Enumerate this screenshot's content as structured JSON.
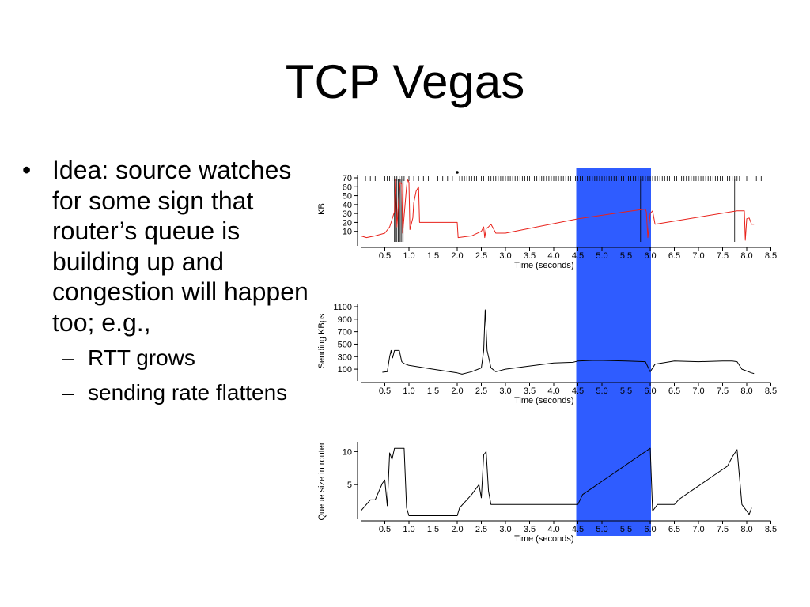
{
  "slide": {
    "title": "TCP Vegas",
    "bullets": [
      {
        "marker": "•",
        "text": "Idea: source watches for some sign that router’s queue is building up and congestion will happen too; e.g.,"
      }
    ],
    "sub_bullets": [
      {
        "marker": "–",
        "text": "RTT grows"
      },
      {
        "marker": "–",
        "text": "sending rate flattens"
      }
    ]
  },
  "colors": {
    "highlight": "#2f5cff",
    "cwnd_line": "#e8221b",
    "trace": "#000000"
  },
  "chart_data": [
    {
      "type": "line",
      "ylabel": "KB",
      "xlabel": "Time (seconds)",
      "xlim": [
        0,
        8.5
      ],
      "ylim": [
        0,
        70
      ],
      "xticks": [
        "0.5",
        "1.0",
        "1.5",
        "2.0",
        "2.5",
        "3.0",
        "3.5",
        "4.0",
        "4.5",
        "5.0",
        "5.5",
        "6.0",
        "6.5",
        "7.0",
        "7.5",
        "8.0",
        "8.5"
      ],
      "yticks": [
        "10",
        "20",
        "30",
        "40",
        "50",
        "60",
        "70"
      ],
      "highlight_range": [
        4.5,
        6.0
      ],
      "series": [
        {
          "color": "#e8221b",
          "points": [
            [
              0,
              5
            ],
            [
              0.12,
              3
            ],
            [
              0.3,
              5
            ],
            [
              0.5,
              8
            ],
            [
              0.6,
              15
            ],
            [
              0.7,
              32
            ],
            [
              0.72,
              68
            ],
            [
              0.75,
              15
            ],
            [
              0.8,
              55
            ],
            [
              0.82,
              65
            ],
            [
              0.85,
              63
            ],
            [
              0.87,
              8
            ],
            [
              0.92,
              40
            ],
            [
              0.95,
              60
            ],
            [
              0.97,
              68
            ],
            [
              1.0,
              65
            ],
            [
              1.02,
              12
            ],
            [
              1.08,
              25
            ],
            [
              1.1,
              42
            ],
            [
              1.15,
              55
            ],
            [
              1.2,
              60
            ],
            [
              1.22,
              20
            ],
            [
              2.0,
              20
            ],
            [
              2.02,
              3
            ],
            [
              2.3,
              5
            ],
            [
              2.5,
              10
            ],
            [
              2.55,
              15
            ],
            [
              2.57,
              3
            ],
            [
              2.6,
              13
            ],
            [
              2.65,
              15
            ],
            [
              2.7,
              18
            ],
            [
              2.75,
              13
            ],
            [
              2.8,
              8
            ],
            [
              3.0,
              8
            ],
            [
              4.5,
              24
            ],
            [
              5.0,
              28
            ],
            [
              5.5,
              32
            ],
            [
              5.9,
              35
            ],
            [
              5.92,
              32
            ],
            [
              5.95,
              3
            ],
            [
              6.0,
              30
            ],
            [
              6.05,
              33
            ],
            [
              6.1,
              18
            ],
            [
              7.8,
              33
            ],
            [
              7.95,
              33
            ],
            [
              7.97,
              0
            ],
            [
              8.0,
              24
            ],
            [
              8.05,
              25
            ],
            [
              8.1,
              18
            ],
            [
              8.15,
              18
            ]
          ]
        }
      ],
      "vertical_marks": [
        0.7,
        0.72,
        0.75,
        0.78,
        0.8,
        0.82,
        0.85,
        0.88,
        2.6,
        5.8,
        7.75
      ],
      "tick_marks": [
        0.1,
        0.2,
        0.3,
        0.4,
        0.5,
        0.55,
        0.6,
        0.65,
        0.7,
        0.75,
        0.8,
        0.85,
        0.9,
        1.0,
        1.1,
        1.2,
        1.3,
        1.4,
        1.5,
        1.6,
        1.7,
        1.8,
        1.9,
        2.05,
        2.1,
        2.15,
        2.2,
        2.25,
        2.3,
        2.35,
        2.4,
        2.45,
        2.5,
        2.55,
        2.6,
        2.65,
        2.7,
        2.75,
        2.8,
        2.85,
        2.9,
        2.95,
        3.0,
        3.05,
        3.1,
        3.15,
        3.2,
        3.25,
        3.3,
        3.35,
        3.4,
        3.45,
        3.5,
        3.55,
        3.6,
        3.65,
        3.7,
        3.75,
        3.8,
        3.85,
        3.9,
        3.95,
        4.0,
        4.05,
        4.1,
        4.15,
        4.2,
        4.25,
        4.3,
        4.35,
        4.4,
        4.45,
        4.5,
        4.55,
        4.6,
        4.65,
        4.7,
        4.75,
        4.8,
        4.85,
        4.9,
        4.95,
        5.0,
        5.05,
        5.1,
        5.15,
        5.2,
        5.25,
        5.3,
        5.35,
        5.4,
        5.45,
        5.5,
        5.55,
        5.6,
        5.65,
        5.7,
        5.75,
        5.8,
        5.85,
        5.9,
        5.95,
        6.0,
        6.05,
        6.1,
        6.15,
        6.2,
        6.25,
        6.3,
        6.35,
        6.4,
        6.45,
        6.5,
        6.55,
        6.6,
        6.65,
        6.7,
        6.75,
        6.8,
        6.85,
        6.9,
        6.95,
        7.0,
        7.05,
        7.1,
        7.15,
        7.2,
        7.25,
        7.3,
        7.35,
        7.4,
        7.45,
        7.5,
        7.55,
        7.6,
        7.65,
        7.7,
        7.75,
        7.8,
        7.85,
        8.0,
        8.2,
        8.3
      ]
    },
    {
      "type": "line",
      "ylabel": "Sending KBps",
      "xlabel": "Time (seconds)",
      "xlim": [
        0,
        8.5
      ],
      "ylim": [
        0,
        1100
      ],
      "xticks": [
        "0.5",
        "1.0",
        "1.5",
        "2.0",
        "2.5",
        "3.0",
        "3.5",
        "4.0",
        "4.5",
        "5.0",
        "5.5",
        "6.0",
        "6.5",
        "7.0",
        "7.5",
        "8.0",
        "8.5"
      ],
      "yticks": [
        "100",
        "300",
        "500",
        "700",
        "900",
        "1100"
      ],
      "highlight_range": [
        4.5,
        6.0
      ],
      "series": [
        {
          "color": "#000000",
          "points": [
            [
              0.45,
              50
            ],
            [
              0.55,
              60
            ],
            [
              0.6,
              300
            ],
            [
              0.63,
              400
            ],
            [
              0.66,
              280
            ],
            [
              0.7,
              400
            ],
            [
              0.8,
              400
            ],
            [
              0.85,
              220
            ],
            [
              0.9,
              190
            ],
            [
              1.0,
              160
            ],
            [
              1.5,
              100
            ],
            [
              2.0,
              40
            ],
            [
              2.1,
              20
            ],
            [
              2.3,
              60
            ],
            [
              2.5,
              120
            ],
            [
              2.55,
              400
            ],
            [
              2.58,
              1050
            ],
            [
              2.62,
              400
            ],
            [
              2.7,
              120
            ],
            [
              2.8,
              60
            ],
            [
              3.0,
              100
            ],
            [
              3.5,
              150
            ],
            [
              4.0,
              200
            ],
            [
              4.4,
              210
            ],
            [
              4.5,
              230
            ],
            [
              4.8,
              240
            ],
            [
              5.0,
              240
            ],
            [
              5.5,
              230
            ],
            [
              5.9,
              220
            ],
            [
              6.0,
              60
            ],
            [
              6.1,
              180
            ],
            [
              6.5,
              230
            ],
            [
              7.0,
              220
            ],
            [
              7.5,
              230
            ],
            [
              7.7,
              230
            ],
            [
              7.8,
              220
            ],
            [
              7.9,
              100
            ],
            [
              8.1,
              40
            ],
            [
              8.15,
              30
            ]
          ]
        }
      ]
    },
    {
      "type": "line",
      "ylabel": "Queue size in router",
      "xlabel": "Time (seconds)",
      "xlim": [
        0,
        8.5
      ],
      "ylim": [
        0,
        11
      ],
      "xticks": [
        "0.5",
        "1.0",
        "1.5",
        "2.0",
        "2.5",
        "3.0",
        "3.5",
        "4.0",
        "4.5",
        "5.0",
        "5.5",
        "6.0",
        "6.5",
        "7.0",
        "7.5",
        "8.0",
        "8.5"
      ],
      "yticks": [
        "5",
        "10"
      ],
      "highlight_range": [
        4.5,
        6.0
      ],
      "series": [
        {
          "color": "#000000",
          "points": [
            [
              0,
              1
            ],
            [
              0.2,
              2.7
            ],
            [
              0.3,
              2.7
            ],
            [
              0.45,
              5.2
            ],
            [
              0.5,
              5.7
            ],
            [
              0.55,
              1.8
            ],
            [
              0.6,
              9.8
            ],
            [
              0.65,
              8.8
            ],
            [
              0.7,
              10.5
            ],
            [
              0.9,
              10.5
            ],
            [
              0.95,
              1.5
            ],
            [
              1.0,
              0.3
            ],
            [
              2.0,
              0.3
            ],
            [
              2.05,
              1.5
            ],
            [
              2.3,
              3.5
            ],
            [
              2.45,
              5
            ],
            [
              2.5,
              3
            ],
            [
              2.55,
              9.5
            ],
            [
              2.6,
              10
            ],
            [
              2.65,
              4
            ],
            [
              2.7,
              2
            ],
            [
              4.5,
              2
            ],
            [
              4.6,
              3.5
            ],
            [
              4.8,
              4.5
            ],
            [
              5.0,
              5.5
            ],
            [
              5.2,
              6.5
            ],
            [
              5.4,
              7.5
            ],
            [
              5.6,
              8.5
            ],
            [
              5.8,
              9.5
            ],
            [
              6.0,
              10.5
            ],
            [
              6.05,
              1
            ],
            [
              6.15,
              2
            ],
            [
              6.5,
              2
            ],
            [
              6.6,
              2.8
            ],
            [
              6.8,
              3.8
            ],
            [
              7.0,
              4.8
            ],
            [
              7.2,
              5.8
            ],
            [
              7.4,
              6.8
            ],
            [
              7.6,
              7.8
            ],
            [
              7.7,
              9.2
            ],
            [
              7.8,
              10.3
            ],
            [
              7.9,
              2
            ],
            [
              8.05,
              0.5
            ],
            [
              8.1,
              1.5
            ]
          ]
        }
      ]
    }
  ]
}
